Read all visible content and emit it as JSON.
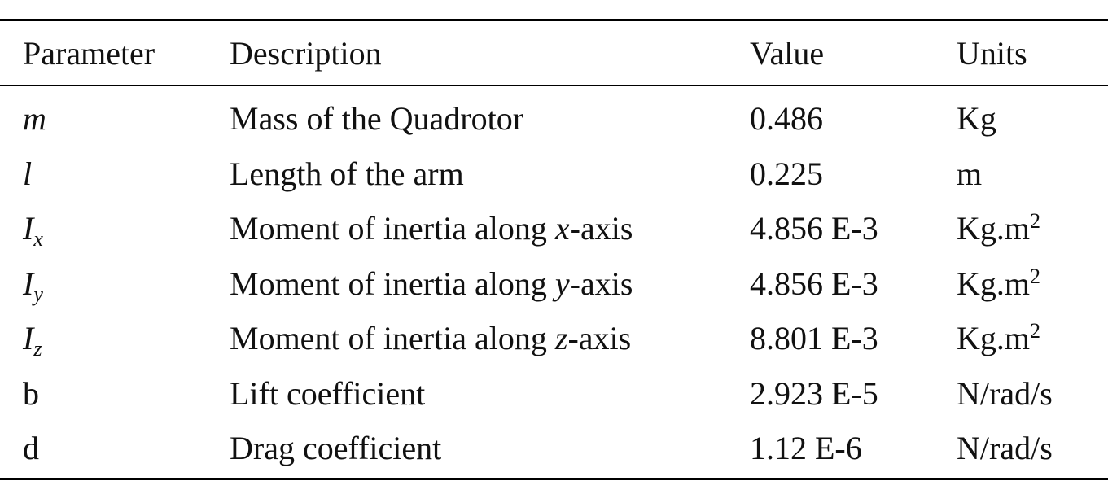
{
  "table": {
    "header": [
      "Parameter",
      "Description",
      "Value",
      "Units"
    ],
    "rows": [
      [
        [
          {
            "text": "m",
            "italic": true
          }
        ],
        [
          {
            "text": "Mass of the Quadrotor"
          }
        ],
        [
          {
            "text": "0.486"
          }
        ],
        [
          {
            "text": "Kg"
          }
        ]
      ],
      [
        [
          {
            "text": "l",
            "italic": true
          }
        ],
        [
          {
            "text": "Length of the arm"
          }
        ],
        [
          {
            "text": "0.225"
          }
        ],
        [
          {
            "text": "m"
          }
        ]
      ],
      [
        [
          {
            "text": "I",
            "italic": true
          },
          {
            "text": "x",
            "italic": true,
            "sub": true
          }
        ],
        [
          {
            "text": "Moment of inertia along "
          },
          {
            "text": "x",
            "italic": true
          },
          {
            "text": "-axis"
          }
        ],
        [
          {
            "text": "4.856 E-3"
          }
        ],
        [
          {
            "text": "Kg.m"
          },
          {
            "text": "2",
            "sup": true
          }
        ]
      ],
      [
        [
          {
            "text": "I",
            "italic": true
          },
          {
            "text": "y",
            "italic": true,
            "sub": true
          }
        ],
        [
          {
            "text": "Moment of inertia along "
          },
          {
            "text": "y",
            "italic": true
          },
          {
            "text": "-axis"
          }
        ],
        [
          {
            "text": "4.856 E-3"
          }
        ],
        [
          {
            "text": "Kg.m"
          },
          {
            "text": "2",
            "sup": true
          }
        ]
      ],
      [
        [
          {
            "text": "I",
            "italic": true
          },
          {
            "text": "z",
            "italic": true,
            "sub": true
          }
        ],
        [
          {
            "text": "Moment of inertia along "
          },
          {
            "text": "z",
            "italic": true
          },
          {
            "text": "-axis"
          }
        ],
        [
          {
            "text": "8.801 E-3"
          }
        ],
        [
          {
            "text": "Kg.m"
          },
          {
            "text": "2",
            "sup": true
          }
        ]
      ],
      [
        [
          {
            "text": "b"
          }
        ],
        [
          {
            "text": "Lift coefficient"
          }
        ],
        [
          {
            "text": "2.923 E-5"
          }
        ],
        [
          {
            "text": "N/rad/s"
          }
        ]
      ],
      [
        [
          {
            "text": "d"
          }
        ],
        [
          {
            "text": "Drag coefficient"
          }
        ],
        [
          {
            "text": "1.12 E-6"
          }
        ],
        [
          {
            "text": "N/rad/s"
          }
        ]
      ]
    ]
  }
}
